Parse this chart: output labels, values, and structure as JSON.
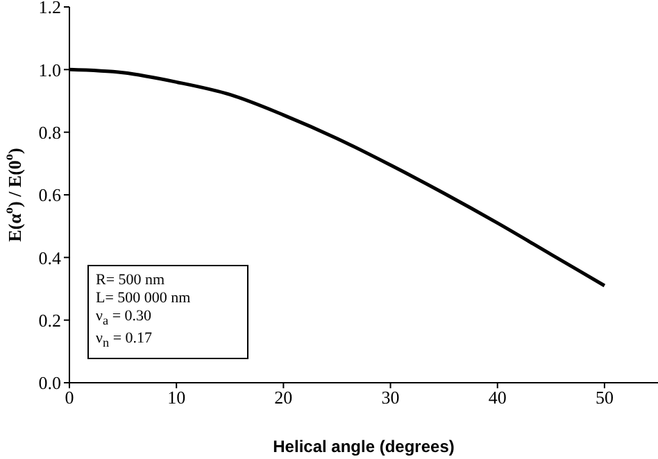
{
  "chart_data": {
    "type": "line",
    "xlabel": "Helical angle (degrees)",
    "ylabel": "E(α$^{o}$) / E(0$^{o}$)",
    "x": [
      0,
      5,
      10,
      15,
      20,
      25,
      30,
      35,
      40,
      45,
      50
    ],
    "series": [
      {
        "color": "#000000",
        "values": [
          1.0,
          0.99,
          0.96,
          0.92,
          0.855,
          0.78,
          0.695,
          0.605,
          0.51,
          0.41,
          0.31
        ]
      }
    ],
    "xlim": [
      0,
      55
    ],
    "xticks": [
      0,
      10,
      20,
      30,
      40,
      50
    ],
    "ylim": [
      0,
      1.2
    ],
    "yticks": [
      {
        "value": 0,
        "label": "0.0"
      },
      {
        "value": 0.2,
        "label": "0.2"
      },
      {
        "value": 0.4,
        "label": "0.4"
      },
      {
        "value": 0.6,
        "label": "0.6"
      },
      {
        "value": 0.8,
        "label": "0.8"
      },
      {
        "value": 1,
        "label": "1.0"
      },
      {
        "value": 1.2,
        "label": "1.2"
      }
    ],
    "annotations": [
      "R= 500 nm",
      "L= 500 000 nm",
      "ν$_{a}$ = 0.30",
      "ν$_{n}$ = 0.17"
    ],
    "grid": false,
    "legend": false,
    "marker": "none",
    "line_style": "solid"
  }
}
